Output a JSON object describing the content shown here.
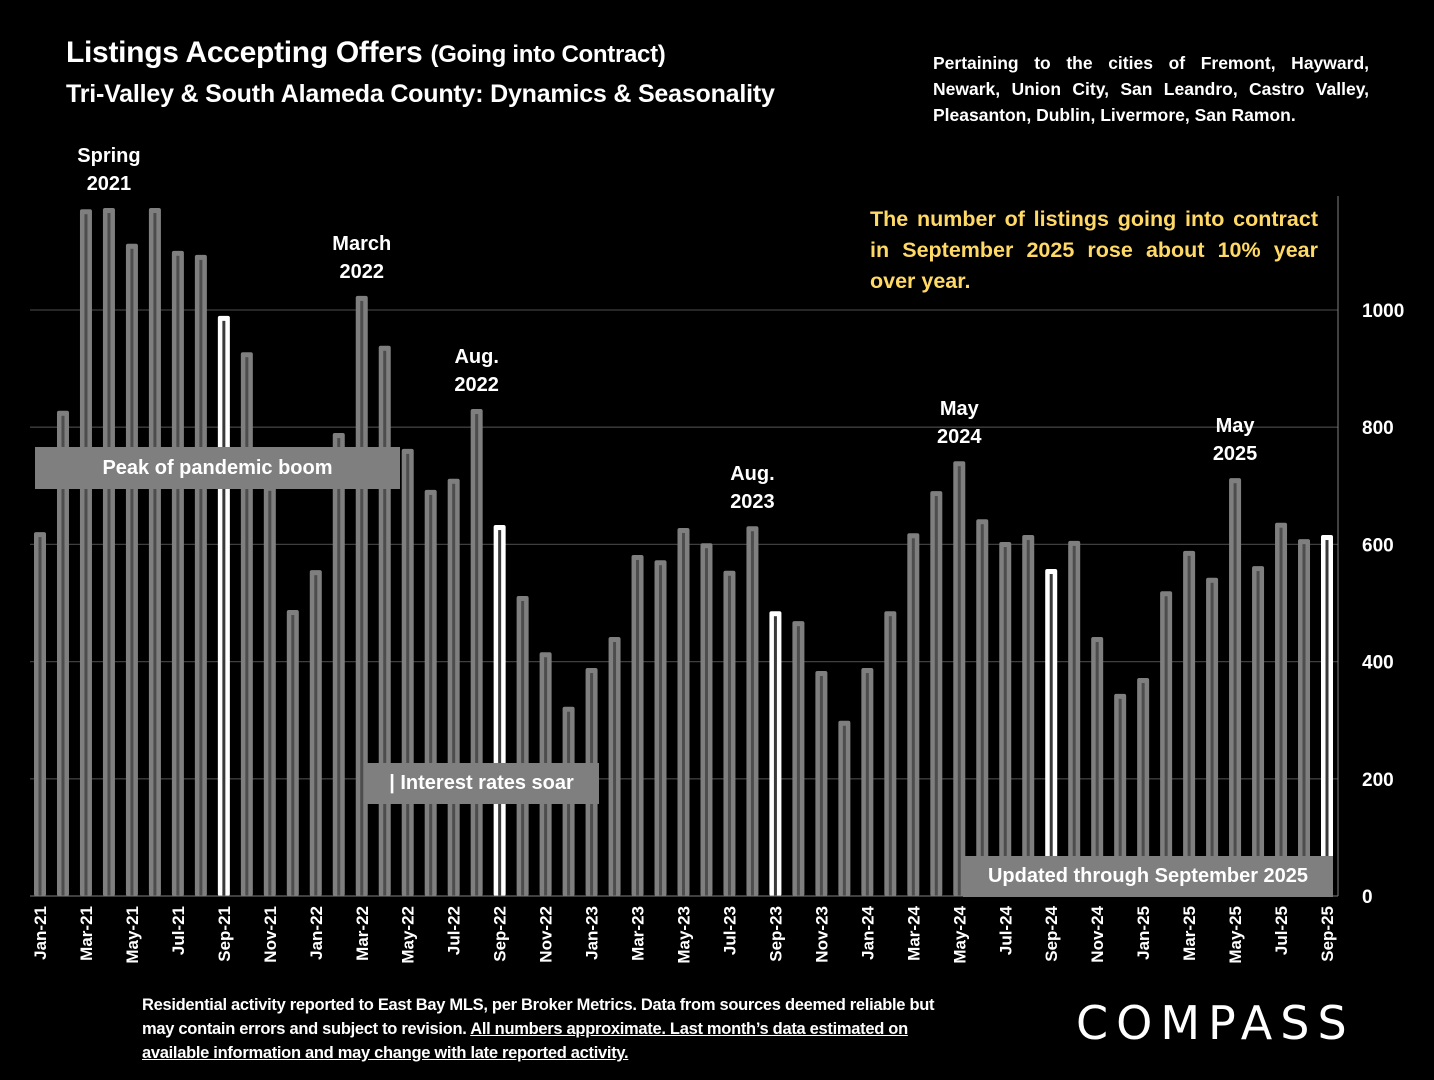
{
  "header": {
    "title_main": "Listings Accepting Offers",
    "title_paren": "(Going into Contract)",
    "subtitle": "Tri-Valley & South Alameda County: Dynamics & Seasonality",
    "cities_note": "Pertaining to the cities of Fremont, Hayward, Newark, Union City, San Leandro, Castro Valley, Pleasanton, Dublin, Livermore, San Ramon."
  },
  "highlight_note": "The number of listings going into contract in September 2025 rose about 10% year over year.",
  "annotations": {
    "peak_box": "Peak of pandemic boom",
    "rates_box": "| Interest rates soar",
    "updated_box": "Updated through September 2025",
    "callouts": [
      {
        "line1": "Spring",
        "line2": "2021",
        "month_index": 3
      },
      {
        "line1": "March",
        "line2": "2022",
        "month_index": 14
      },
      {
        "line1": "Aug.",
        "line2": "2022",
        "month_index": 19
      },
      {
        "line1": "Aug.",
        "line2": "2023",
        "month_index": 31
      },
      {
        "line1": "May",
        "line2": "2024",
        "month_index": 40
      },
      {
        "line1": "May",
        "line2": "2025",
        "month_index": 52
      }
    ]
  },
  "footer": {
    "text_plain": "Residential activity reported to East Bay MLS, per Broker Metrics. Data from sources deemed reliable but may contain errors and subject to revision. ",
    "text_underlined": "All numbers approximate. Last month’s data estimated on available information and may change with late reported activity."
  },
  "logo": "COMPASS",
  "colors": {
    "background": "#000000",
    "bar": "#7f7f7f",
    "bar_inner": "#4d4d4d",
    "bar_highlight": "#ffffff",
    "gridline": "#3f3f3f",
    "highlight_text": "#FFD966",
    "annotation_box": "#7f7f7f"
  },
  "chart_data": {
    "type": "bar",
    "title": "Listings Accepting Offers (Going into Contract)",
    "xlabel": "",
    "ylabel": "",
    "ylim": [
      0,
      1200
    ],
    "yticks": [
      0,
      200,
      400,
      600,
      800,
      1000
    ],
    "y_axis_side": "right",
    "grid": true,
    "categories": [
      "Jan-21",
      "Feb-21",
      "Mar-21",
      "Apr-21",
      "May-21",
      "Jun-21",
      "Jul-21",
      "Aug-21",
      "Sep-21",
      "Oct-21",
      "Nov-21",
      "Dec-21",
      "Jan-22",
      "Feb-22",
      "Mar-22",
      "Apr-22",
      "May-22",
      "Jun-22",
      "Jul-22",
      "Aug-22",
      "Sep-22",
      "Oct-22",
      "Nov-22",
      "Dec-22",
      "Jan-23",
      "Feb-23",
      "Mar-23",
      "Apr-23",
      "May-23",
      "Jun-23",
      "Jul-23",
      "Aug-23",
      "Sep-23",
      "Oct-23",
      "Nov-23",
      "Dec-23",
      "Jan-24",
      "Feb-24",
      "Mar-24",
      "Apr-24",
      "May-24",
      "Jun-24",
      "Jul-24",
      "Aug-24",
      "Sep-24",
      "Oct-24",
      "Nov-24",
      "Dec-24",
      "Jan-25",
      "Feb-25",
      "Mar-25",
      "Apr-25",
      "May-25",
      "Jun-25",
      "Jul-25",
      "Aug-25",
      "Sep-25"
    ],
    "tick_labels_shown": [
      "Jan-21",
      "Mar-21",
      "May-21",
      "Jul-21",
      "Sep-21",
      "Nov-21",
      "Jan-22",
      "Mar-22",
      "May-22",
      "Jul-22",
      "Sep-22",
      "Nov-22",
      "Jan-23",
      "Mar-23",
      "May-23",
      "Jul-23",
      "Sep-23",
      "Nov-23",
      "Jan-24",
      "Mar-24",
      "May-24",
      "Jul-24",
      "Sep-24",
      "Nov-24",
      "Jan-25",
      "Mar-25",
      "May-25",
      "Jul-25",
      "Sep-25"
    ],
    "values": [
      621,
      828,
      1172,
      1174,
      1113,
      1174,
      1101,
      1094,
      990,
      928,
      700,
      488,
      556,
      790,
      1024,
      939,
      763,
      693,
      712,
      831,
      633,
      512,
      416,
      323,
      389,
      442,
      582,
      573,
      628,
      602,
      555,
      631,
      486,
      469,
      384,
      299,
      389,
      486,
      619,
      691,
      742,
      643,
      604,
      616,
      558,
      606,
      442,
      345,
      372,
      520,
      589,
      543,
      713,
      563,
      637,
      609,
      616
    ],
    "highlighted": [
      "Sep-21",
      "Sep-22",
      "Sep-23",
      "Sep-24",
      "Sep-25"
    ]
  }
}
